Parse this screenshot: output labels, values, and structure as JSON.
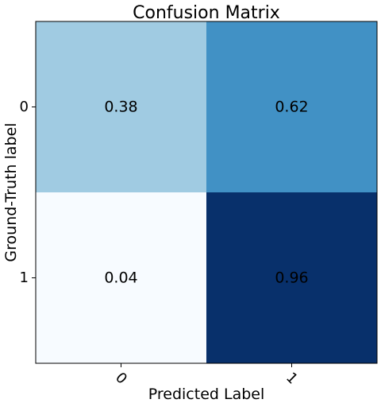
{
  "chart_data": {
    "type": "heatmap",
    "title": "Confusion Matrix",
    "xlabel": "Predicted Label",
    "ylabel": "Ground-Truth label",
    "x_categories": [
      "0",
      "1"
    ],
    "y_categories": [
      "0",
      "1"
    ],
    "values": [
      [
        0.38,
        0.62
      ],
      [
        0.04,
        0.96
      ]
    ],
    "value_labels": [
      [
        "0.38",
        "0.62"
      ],
      [
        "0.04",
        "0.96"
      ]
    ],
    "colormap": "Blues",
    "vmin": 0.04,
    "vmax": 0.96,
    "grid": false
  }
}
